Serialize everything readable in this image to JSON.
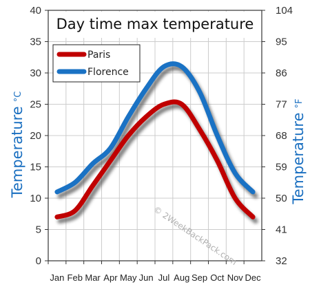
{
  "chart_data": {
    "type": "line",
    "title": "Day time max temperature",
    "categories": [
      "Jan",
      "Feb",
      "Mar",
      "Apr",
      "May",
      "Jun",
      "Jul",
      "Aug",
      "Sep",
      "Oct",
      "Nov",
      "Dec"
    ],
    "series": [
      {
        "name": "Paris",
        "color": "#c00000",
        "values": [
          7,
          8,
          12,
          16,
          20,
          23,
          25,
          25,
          21,
          16,
          10,
          7
        ]
      },
      {
        "name": "Florence",
        "color": "#1a72c4",
        "values": [
          11,
          12.5,
          15.5,
          18,
          23,
          27.5,
          31,
          31,
          27,
          20,
          14,
          11
        ]
      }
    ],
    "ylabel_left": "Temperature",
    "ylabel_left_unit": "°C",
    "ylabel_right": "Temperature",
    "ylabel_right_unit": "°F",
    "ylim": [
      0,
      40
    ],
    "yticks_left": [
      "0",
      "5",
      "10",
      "15",
      "20",
      "25",
      "30",
      "35",
      "40"
    ],
    "yticks_right": [
      "32",
      "41",
      "50",
      "59",
      "68",
      "77",
      "86",
      "95",
      "104"
    ],
    "grid": true,
    "legend_position": "top-left",
    "watermark": "© 2WeekBackPack.com"
  }
}
